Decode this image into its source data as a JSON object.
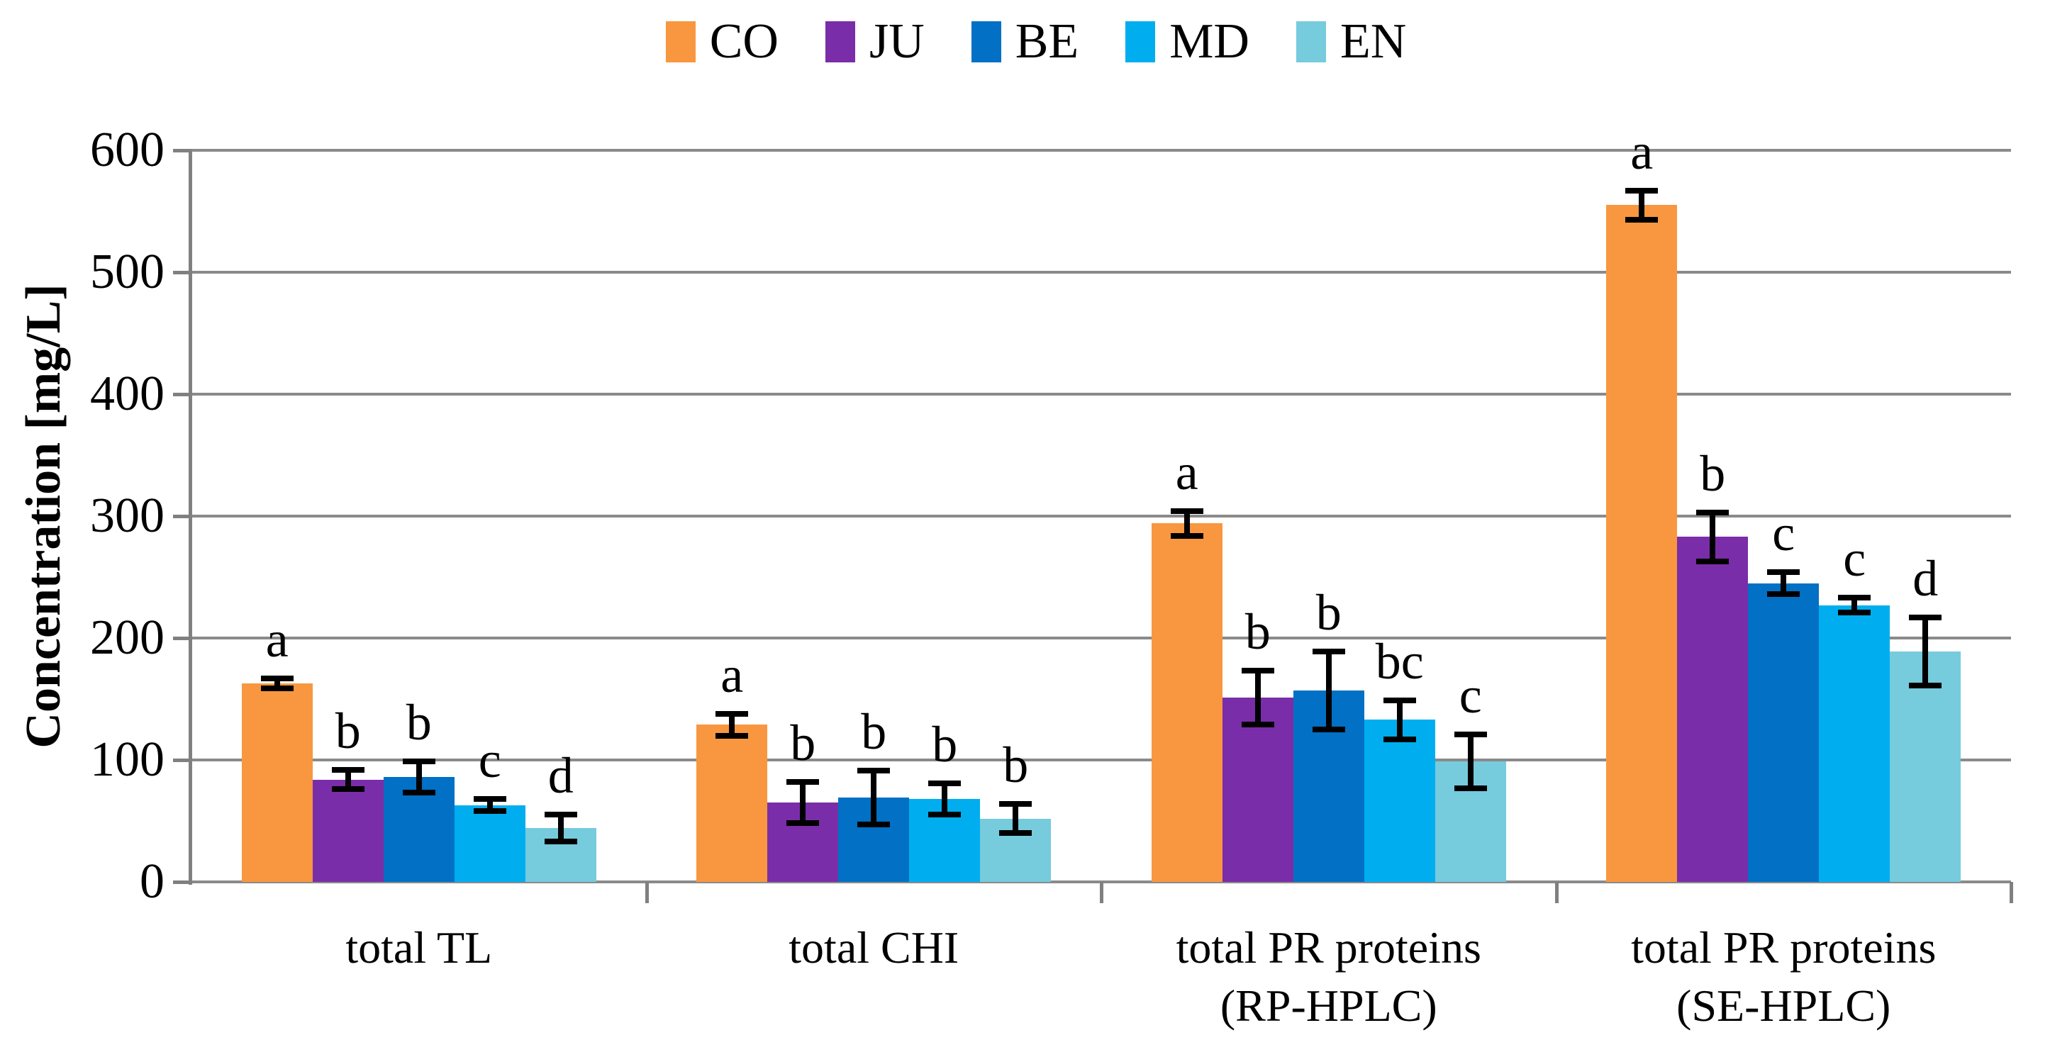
{
  "figure": {
    "background": "#ffffff"
  },
  "chart_data": {
    "type": "bar",
    "title": "",
    "xlabel": "",
    "ylabel": "Concentration [mg/L]",
    "ylim": [
      0,
      600
    ],
    "yticks": [
      0,
      100,
      200,
      300,
      400,
      500,
      600
    ],
    "grid": true,
    "legend_position": "top-center",
    "error_bars": true,
    "gridline_color": "#8a8a8a",
    "axis_color": "#808080",
    "error_bar_color": "#000000",
    "text_color": "#000000",
    "categories": [
      "total TL",
      "total CHI",
      "total PR proteins\n(RP-HPLC)",
      "total PR proteins\n(SE-HPLC)"
    ],
    "series": [
      {
        "name": "CO",
        "color": "#F8973F",
        "values": [
          163,
          129,
          294,
          555
        ],
        "errors": [
          4,
          9,
          10,
          12
        ],
        "sig_letters": [
          "a",
          "a",
          "a",
          "a"
        ]
      },
      {
        "name": "JU",
        "color": "#7A2DA8",
        "values": [
          84,
          65,
          151,
          283
        ],
        "errors": [
          8,
          17,
          22,
          20
        ],
        "sig_letters": [
          "b",
          "b",
          "b",
          "b"
        ]
      },
      {
        "name": "BE",
        "color": "#0170C5",
        "values": [
          86,
          69,
          157,
          245
        ],
        "errors": [
          13,
          22,
          32,
          9
        ],
        "sig_letters": [
          "b",
          "b",
          "b",
          "c"
        ]
      },
      {
        "name": "MD",
        "color": "#00AEEF",
        "values": [
          63,
          68,
          133,
          227
        ],
        "errors": [
          5,
          13,
          16,
          6
        ],
        "sig_letters": [
          "c",
          "b",
          "bc",
          "c"
        ]
      },
      {
        "name": "EN",
        "color": "#76CBDD",
        "values": [
          44,
          52,
          99,
          189
        ],
        "errors": [
          11,
          12,
          22,
          28
        ],
        "sig_letters": [
          "d",
          "b",
          "c",
          "d"
        ]
      }
    ]
  }
}
